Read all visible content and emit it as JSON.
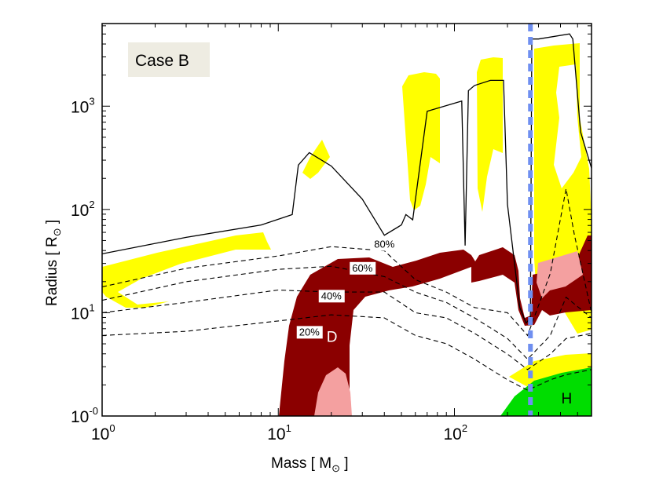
{
  "chart_data": {
    "type": "area",
    "title": "Case B",
    "xlabel": "Mass  [ M",
    "xlabel_symbol": "⊙",
    "xlabel_close": " ]",
    "ylabel": "Radius  [ R",
    "ylabel_symbol": "⊙",
    "ylabel_close": " ]",
    "xscale": "log",
    "xlim": [
      1,
      600
    ],
    "y_ticks": [
      {
        "base": "10",
        "exp": "-0",
        "pos": 0
      },
      {
        "base": "10",
        "exp": "1",
        "pos": 1
      },
      {
        "base": "10",
        "exp": "2",
        "pos": 2
      },
      {
        "base": "10",
        "exp": "3",
        "pos": 3
      }
    ],
    "ylim": [
      0,
      3.8
    ],
    "x_ticks": [
      {
        "base": "10",
        "exp": "0",
        "value": 1
      },
      {
        "base": "10",
        "exp": "1",
        "value": 10
      },
      {
        "base": "10",
        "exp": "2",
        "value": 100
      }
    ],
    "vertical_line": {
      "mass": 270,
      "color": "#6f8ff0",
      "style": "dashed"
    },
    "colors": {
      "convective_yellow": "#ffff00",
      "dark_red": "#8b0000",
      "pink": "#f4a0a0",
      "green": "#00dd00",
      "outline": "#000000"
    },
    "region_labels": [
      {
        "text": "D",
        "mass": 20,
        "pos": 0.72,
        "color": "#ffffff"
      },
      {
        "text": "H",
        "mass": 430,
        "pos": 0.12,
        "color": "#000000"
      }
    ],
    "contour_labels": [
      {
        "text": "80%",
        "mass": 40,
        "pos": 1.63
      },
      {
        "text": "60%",
        "mass": 30,
        "pos": 1.4
      },
      {
        "text": "40%",
        "mass": 20,
        "pos": 1.13
      },
      {
        "text": "20%",
        "mass": 15,
        "pos": 0.78
      }
    ],
    "stellar_radius": {
      "mass": [
        1,
        3,
        8,
        12,
        13,
        15,
        20,
        30,
        40,
        50,
        53,
        58,
        70,
        110,
        115,
        120,
        130,
        160,
        190,
        200,
        235,
        255,
        270,
        275,
        300,
        450,
        470,
        520,
        600
      ],
      "pos": [
        1.57,
        1.73,
        1.85,
        1.95,
        2.43,
        2.55,
        2.42,
        2.1,
        1.75,
        1.85,
        1.95,
        1.9,
        2.95,
        3.05,
        1.65,
        3.15,
        3.2,
        3.25,
        3.25,
        2.05,
        1.05,
        0.9,
        0.95,
        3.65,
        3.65,
        3.7,
        3.65,
        2.75,
        2.4
      ]
    },
    "contours": [
      {
        "name": "80%",
        "mass": [
          1,
          3,
          10,
          20,
          40,
          60,
          90,
          130,
          200,
          260,
          350,
          430,
          480,
          600
        ],
        "pos": [
          1.25,
          1.43,
          1.55,
          1.64,
          1.6,
          1.32,
          1.2,
          1.05,
          1.0,
          0.78,
          1.38,
          2.2,
          1.75,
          1.0
        ]
      },
      {
        "name": "60%",
        "mass": [
          1,
          3,
          10,
          20,
          40,
          60,
          90,
          130,
          200,
          260,
          350,
          430,
          600
        ],
        "pos": [
          1.12,
          1.3,
          1.42,
          1.45,
          1.35,
          1.2,
          1.1,
          0.95,
          0.75,
          0.55,
          0.78,
          1.15,
          0.95
        ]
      },
      {
        "name": "40%",
        "mass": [
          1,
          3,
          10,
          20,
          40,
          60,
          90,
          130,
          200,
          260,
          350,
          430,
          600
        ],
        "pos": [
          1.0,
          1.1,
          1.22,
          1.2,
          1.2,
          1.0,
          0.95,
          0.8,
          0.6,
          0.45,
          0.6,
          0.75,
          0.8
        ]
      },
      {
        "name": "20%",
        "mass": [
          1,
          3,
          10,
          20,
          40,
          60,
          90,
          130,
          200,
          260,
          350,
          430,
          600
        ],
        "pos": [
          0.78,
          0.82,
          0.92,
          0.98,
          0.95,
          0.78,
          0.7,
          0.55,
          0.35,
          0.25,
          0.35,
          0.4,
          0.45
        ]
      }
    ]
  }
}
